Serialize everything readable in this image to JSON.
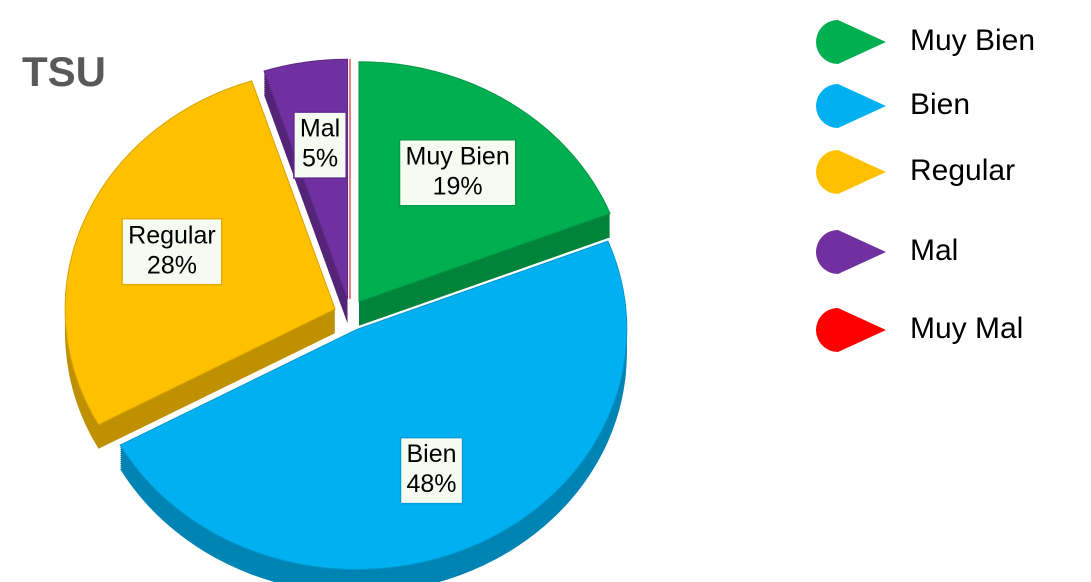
{
  "chart_data": {
    "type": "pie",
    "title": "TSU",
    "categories": [
      "Muy Bien",
      "Bien",
      "Regular",
      "Mal",
      "Muy Mal"
    ],
    "values": [
      19,
      48,
      28,
      5,
      0
    ],
    "value_labels": [
      "19%",
      "48%",
      "28%",
      "5%",
      null
    ],
    "colors": [
      "#00b050",
      "#00b0f0",
      "#ffc000",
      "#7030a0",
      "#ff0000"
    ],
    "legend": "right"
  }
}
